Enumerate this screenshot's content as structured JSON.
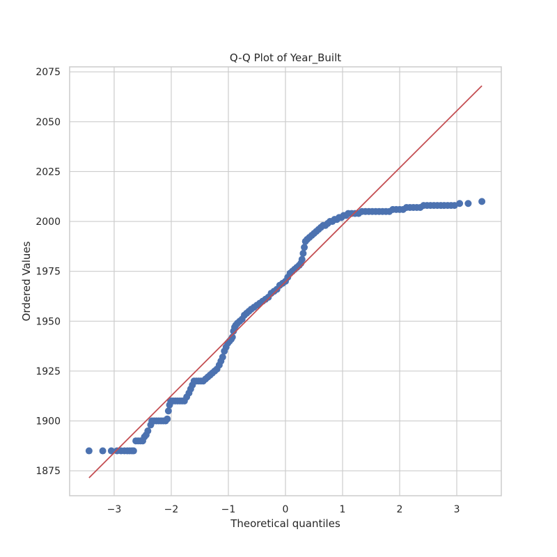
{
  "chart_data": {
    "type": "scatter",
    "title": "Q-Q Plot of Year_Built",
    "xlabel": "Theoretical quantiles",
    "ylabel": "Ordered Values",
    "xlim": [
      -3.78,
      3.78
    ],
    "ylim": [
      1862.5,
      2077.5
    ],
    "xticks": [
      -3,
      -2,
      -1,
      0,
      1,
      2,
      3
    ],
    "xtick_labels": [
      "−3",
      "−2",
      "−1",
      "0",
      "1",
      "2",
      "3"
    ],
    "yticks": [
      1875,
      1900,
      1925,
      1950,
      1975,
      2000,
      2025,
      2050,
      2075
    ],
    "ytick_labels": [
      "1875",
      "1900",
      "1925",
      "1950",
      "1975",
      "2000",
      "2025",
      "2050",
      "2075"
    ],
    "grid": true,
    "fit_line": {
      "x": [
        -3.44,
        3.44
      ],
      "y": [
        1871.5,
        2068.0
      ]
    },
    "series": [
      {
        "points": [
          [
            -3.44,
            1885
          ],
          [
            -3.2,
            1885
          ],
          [
            -3.05,
            1885
          ],
          [
            -2.95,
            1885
          ],
          [
            -2.88,
            1885
          ],
          [
            -2.82,
            1885
          ],
          [
            -2.77,
            1885
          ],
          [
            -2.73,
            1885
          ],
          [
            -2.69,
            1885
          ],
          [
            -2.66,
            1885
          ],
          [
            -2.62,
            1890
          ],
          [
            -2.58,
            1890
          ],
          [
            -2.54,
            1890
          ],
          [
            -2.5,
            1890
          ],
          [
            -2.47,
            1892
          ],
          [
            -2.44,
            1893
          ],
          [
            -2.41,
            1895
          ],
          [
            -2.36,
            1898
          ],
          [
            -2.34,
            1900
          ],
          [
            -2.3,
            1900
          ],
          [
            -2.26,
            1900
          ],
          [
            -2.22,
            1900
          ],
          [
            -2.18,
            1900
          ],
          [
            -2.14,
            1900
          ],
          [
            -2.1,
            1900
          ],
          [
            -2.07,
            1901
          ],
          [
            -2.05,
            1905
          ],
          [
            -2.03,
            1908
          ],
          [
            -2.01,
            1910
          ],
          [
            -1.97,
            1910
          ],
          [
            -1.93,
            1910
          ],
          [
            -1.89,
            1910
          ],
          [
            -1.85,
            1910
          ],
          [
            -1.81,
            1910
          ],
          [
            -1.77,
            1910
          ],
          [
            -1.73,
            1912
          ],
          [
            -1.69,
            1914
          ],
          [
            -1.66,
            1916
          ],
          [
            -1.63,
            1918
          ],
          [
            -1.6,
            1920
          ],
          [
            -1.56,
            1920
          ],
          [
            -1.52,
            1920
          ],
          [
            -1.48,
            1920
          ],
          [
            -1.44,
            1920
          ],
          [
            -1.4,
            1921
          ],
          [
            -1.36,
            1922
          ],
          [
            -1.32,
            1923
          ],
          [
            -1.28,
            1924
          ],
          [
            -1.24,
            1925
          ],
          [
            -1.2,
            1926
          ],
          [
            -1.16,
            1928
          ],
          [
            -1.13,
            1930
          ],
          [
            -1.1,
            1932
          ],
          [
            -1.07,
            1935
          ],
          [
            -1.04,
            1937
          ],
          [
            -1.01,
            1939
          ],
          [
            -0.98,
            1940
          ],
          [
            -0.95,
            1941
          ],
          [
            -0.93,
            1942
          ],
          [
            -0.91,
            1945
          ],
          [
            -0.89,
            1947
          ],
          [
            -0.87,
            1948
          ],
          [
            -0.84,
            1949
          ],
          [
            -0.8,
            1950
          ],
          [
            -0.76,
            1951
          ],
          [
            -0.72,
            1953
          ],
          [
            -0.68,
            1954
          ],
          [
            -0.64,
            1955
          ],
          [
            -0.6,
            1956
          ],
          [
            -0.55,
            1957
          ],
          [
            -0.5,
            1958
          ],
          [
            -0.45,
            1959
          ],
          [
            -0.4,
            1960
          ],
          [
            -0.35,
            1961
          ],
          [
            -0.3,
            1962
          ],
          [
            -0.25,
            1964
          ],
          [
            -0.2,
            1965
          ],
          [
            -0.15,
            1966
          ],
          [
            -0.1,
            1968
          ],
          [
            -0.05,
            1969
          ],
          [
            0.0,
            1970
          ],
          [
            0.04,
            1972
          ],
          [
            0.08,
            1974
          ],
          [
            0.12,
            1975
          ],
          [
            0.16,
            1976
          ],
          [
            0.2,
            1977
          ],
          [
            0.24,
            1978
          ],
          [
            0.27,
            1979
          ],
          [
            0.29,
            1981
          ],
          [
            0.31,
            1984
          ],
          [
            0.33,
            1987
          ],
          [
            0.35,
            1990
          ],
          [
            0.38,
            1991
          ],
          [
            0.42,
            1992
          ],
          [
            0.46,
            1993
          ],
          [
            0.5,
            1994
          ],
          [
            0.54,
            1995
          ],
          [
            0.58,
            1996
          ],
          [
            0.62,
            1997
          ],
          [
            0.66,
            1998
          ],
          [
            0.7,
            1998
          ],
          [
            0.74,
            1999
          ],
          [
            0.78,
            2000
          ],
          [
            0.82,
            2000
          ],
          [
            0.86,
            2001
          ],
          [
            0.9,
            2001
          ],
          [
            0.94,
            2002
          ],
          [
            0.98,
            2002
          ],
          [
            1.02,
            2003
          ],
          [
            1.06,
            2003
          ],
          [
            1.1,
            2004
          ],
          [
            1.16,
            2004
          ],
          [
            1.22,
            2004
          ],
          [
            1.28,
            2004
          ],
          [
            1.34,
            2005
          ],
          [
            1.4,
            2005
          ],
          [
            1.46,
            2005
          ],
          [
            1.52,
            2005
          ],
          [
            1.58,
            2005
          ],
          [
            1.64,
            2005
          ],
          [
            1.7,
            2005
          ],
          [
            1.76,
            2005
          ],
          [
            1.82,
            2005
          ],
          [
            1.88,
            2006
          ],
          [
            1.94,
            2006
          ],
          [
            2.0,
            2006
          ],
          [
            2.06,
            2006
          ],
          [
            2.12,
            2007
          ],
          [
            2.18,
            2007
          ],
          [
            2.24,
            2007
          ],
          [
            2.3,
            2007
          ],
          [
            2.36,
            2007
          ],
          [
            2.42,
            2008
          ],
          [
            2.48,
            2008
          ],
          [
            2.54,
            2008
          ],
          [
            2.6,
            2008
          ],
          [
            2.66,
            2008
          ],
          [
            2.72,
            2008
          ],
          [
            2.78,
            2008
          ],
          [
            2.84,
            2008
          ],
          [
            2.9,
            2008
          ],
          [
            2.96,
            2008
          ],
          [
            3.05,
            2009
          ],
          [
            3.2,
            2009
          ],
          [
            3.44,
            2010
          ]
        ]
      }
    ],
    "colors": {
      "points": "#4c72b0",
      "fit_line": "#c44e52",
      "grid": "#cccccc",
      "frame": "#cccccc",
      "text": "#262626"
    }
  }
}
